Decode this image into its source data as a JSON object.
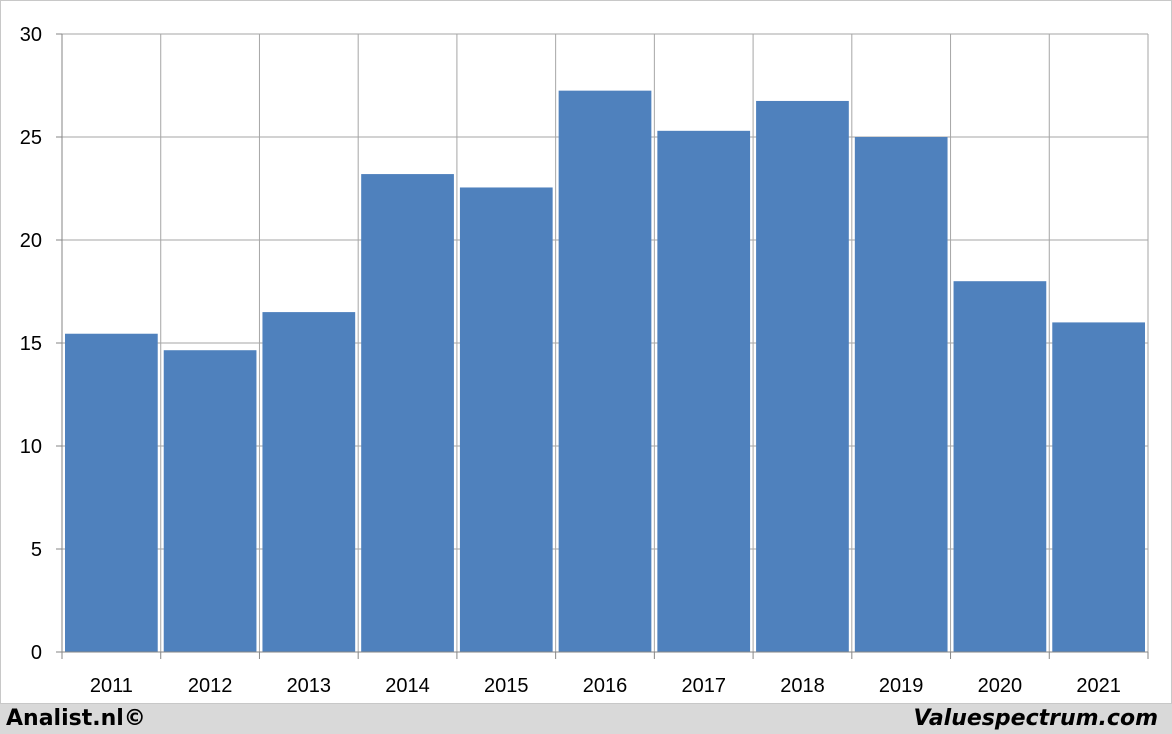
{
  "chart_data": {
    "type": "bar",
    "title": "",
    "xlabel": "",
    "ylabel": "",
    "categories": [
      "2011",
      "2012",
      "2013",
      "2014",
      "2015",
      "2016",
      "2017",
      "2018",
      "2019",
      "2020",
      "2021"
    ],
    "values": [
      15.45,
      14.65,
      16.5,
      23.2,
      22.55,
      27.25,
      25.3,
      26.75,
      25.0,
      18.0,
      16.0
    ],
    "ylim": [
      0,
      30
    ],
    "yticks": [
      0,
      5,
      10,
      15,
      20,
      25,
      30
    ],
    "grid": true,
    "legend": "none",
    "bar_color": "#4f81bd"
  },
  "footer": {
    "left_text": "Analist.nl©",
    "right_text": "Valuespectrum.com"
  }
}
